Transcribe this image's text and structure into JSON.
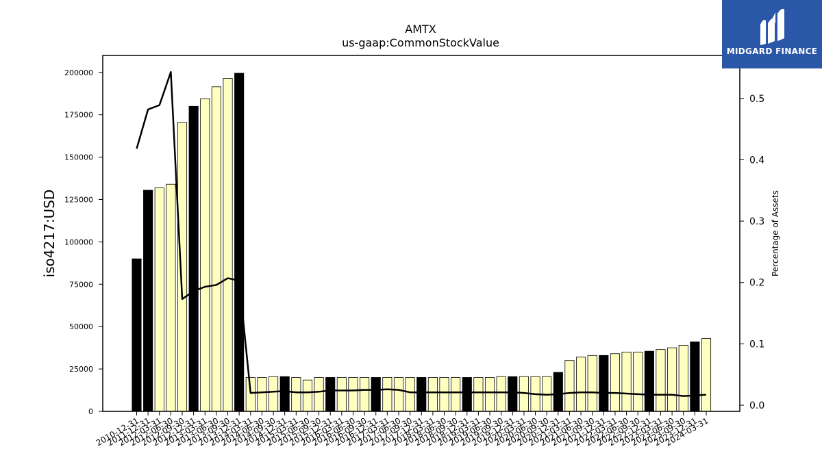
{
  "brand": {
    "name": "MIDGARD FINANCE",
    "bg_color": "#2a57a8"
  },
  "chart_data": {
    "type": "bar",
    "title": "AMTX",
    "subtitle": "us-gaap:CommonStockValue",
    "ylabel": "iso4217:USD",
    "y2label": "Percentage of Assets",
    "ylim": [
      0,
      210000
    ],
    "y_ticks": [
      0,
      25000,
      50000,
      75000,
      100000,
      125000,
      150000,
      175000,
      200000
    ],
    "y2lim": [
      -0.01,
      0.57
    ],
    "y2_ticks": [
      0.0,
      0.1,
      0.2,
      0.3,
      0.4,
      0.5
    ],
    "y2_tick_labels": [
      "0.0",
      "0.1",
      "0.2",
      "0.3",
      "0.4",
      "0.5"
    ],
    "categories": [
      "2010-12-31",
      "2011-12-31",
      "2012-03-31",
      "2012-06-30",
      "2012-09-30",
      "2012-12-31",
      "2013-03-31",
      "2013-06-30",
      "2013-09-30",
      "2013-12-31",
      "2014-03-31",
      "2014-06-30",
      "2014-09-30",
      "2014-12-31",
      "2015-03-31",
      "2015-06-30",
      "2015-09-30",
      "2015-12-31",
      "2016-03-31",
      "2016-06-30",
      "2016-09-30",
      "2016-12-31",
      "2017-03-31",
      "2017-06-30",
      "2017-09-30",
      "2017-12-31",
      "2018-03-31",
      "2018-06-30",
      "2018-09-30",
      "2018-12-31",
      "2019-03-31",
      "2019-06-30",
      "2019-09-30",
      "2019-12-31",
      "2020-03-31",
      "2020-06-30",
      "2020-09-30",
      "2020-12-31",
      "2021-03-31",
      "2021-06-30",
      "2021-09-30",
      "2021-12-31",
      "2022-03-31",
      "2022-06-30",
      "2022-09-30",
      "2022-12-31",
      "2023-03-31",
      "2023-06-30",
      "2023-09-30",
      "2023-12-31",
      "2024-03-31"
    ],
    "series": [
      {
        "type": "bar",
        "values": [
          90000,
          130500,
          132000,
          134000,
          170500,
          180000,
          184500,
          191500,
          196500,
          199500,
          20000,
          20000,
          20500,
          20500,
          20000,
          18500,
          20000,
          20000,
          20000,
          20000,
          20000,
          20000,
          20000,
          20000,
          20000,
          20000,
          20000,
          20000,
          20000,
          20000,
          20000,
          20000,
          20500,
          20500,
          20500,
          20500,
          20500,
          23000,
          30000,
          32000,
          33000,
          33000,
          34000,
          35000,
          35000,
          35500,
          36500,
          37500,
          39000,
          41000,
          43000
        ],
        "highlight": [
          true,
          true,
          false,
          false,
          false,
          true,
          false,
          false,
          false,
          true,
          false,
          false,
          false,
          true,
          false,
          false,
          false,
          true,
          false,
          false,
          false,
          true,
          false,
          false,
          false,
          true,
          false,
          false,
          false,
          true,
          false,
          false,
          false,
          true,
          false,
          false,
          false,
          true,
          false,
          false,
          false,
          true,
          false,
          false,
          false,
          true,
          false,
          false,
          false,
          true,
          false
        ],
        "highlight_color": "#000000",
        "color": "#ffffc0",
        "edge_color": "#000000"
      },
      {
        "type": "line",
        "axis": "right",
        "values": [
          0.418,
          0.482,
          0.489,
          0.543,
          0.173,
          0.186,
          0.193,
          0.196,
          0.207,
          0.203,
          0.02,
          0.021,
          0.022,
          0.023,
          0.021,
          0.021,
          0.022,
          0.024,
          0.024,
          0.024,
          0.025,
          0.025,
          0.026,
          0.025,
          0.021,
          0.021,
          0.021,
          0.021,
          0.021,
          0.021,
          0.021,
          0.021,
          0.021,
          0.021,
          0.02,
          0.018,
          0.017,
          0.018,
          0.02,
          0.021,
          0.021,
          0.02,
          0.02,
          0.019,
          0.018,
          0.017,
          0.017,
          0.017,
          0.015,
          0.016,
          0.017
        ],
        "color": "#000000"
      }
    ]
  }
}
